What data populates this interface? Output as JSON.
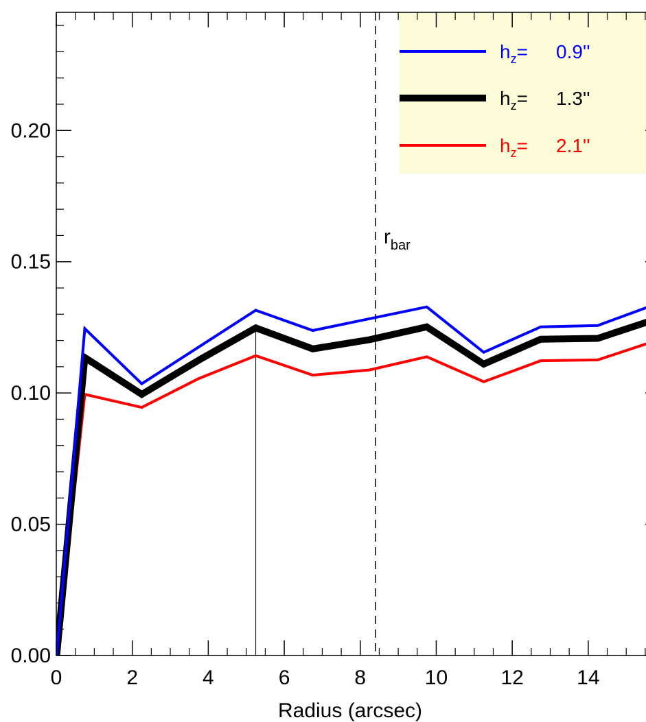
{
  "chart_data": {
    "type": "line",
    "xlabel": "Radius (arcsec)",
    "ylabel": "",
    "xlim": [
      0,
      15.9
    ],
    "ylim": [
      0.0,
      0.245
    ],
    "x_ticks": [
      "0",
      "2",
      "4",
      "6",
      "8",
      "10",
      "12",
      "14"
    ],
    "y_ticks": [
      "0.00",
      "0.05",
      "0.10",
      "0.15",
      "0.20"
    ],
    "x": [
      0,
      0.75,
      2.25,
      3.75,
      5.25,
      6.75,
      8.25,
      9.75,
      11.25,
      12.75,
      14.25,
      15.9
    ],
    "series": [
      {
        "name_prefix": "h",
        "name_sub": "z",
        "name_eq": "=",
        "name_value": "0.9''",
        "color": "#0000ff",
        "width": "thin",
        "values": [
          0.0,
          0.1245,
          0.1035,
          0.1175,
          0.1315,
          0.1238,
          0.1283,
          0.1328,
          0.1155,
          0.1252,
          0.1257,
          0.1345
        ]
      },
      {
        "name_prefix": "h",
        "name_sub": "z",
        "name_eq": "=",
        "name_value": "1.3''",
        "color": "#000000",
        "width": "thick",
        "values": [
          0.0,
          0.1135,
          0.0995,
          0.1125,
          0.1248,
          0.1168,
          0.1203,
          0.1252,
          0.111,
          0.1205,
          0.1208,
          0.1287
        ]
      },
      {
        "name_prefix": "h",
        "name_sub": "z",
        "name_eq": "=",
        "name_value": "2.1''",
        "color": "#ff0000",
        "width": "thin",
        "values": [
          0.0,
          0.0995,
          0.0945,
          0.1055,
          0.1142,
          0.1068,
          0.1088,
          0.1138,
          0.1043,
          0.1123,
          0.1126,
          0.1205
        ]
      }
    ],
    "reference_lines": [
      {
        "x": 5.25,
        "style": "solid",
        "label_main": "",
        "label_sub": ""
      },
      {
        "x": 8.4,
        "style": "dashed",
        "label_main": "r",
        "label_sub": "bar"
      }
    ],
    "legend": {
      "placement": "top-right",
      "background": "#fdfcd9"
    }
  }
}
